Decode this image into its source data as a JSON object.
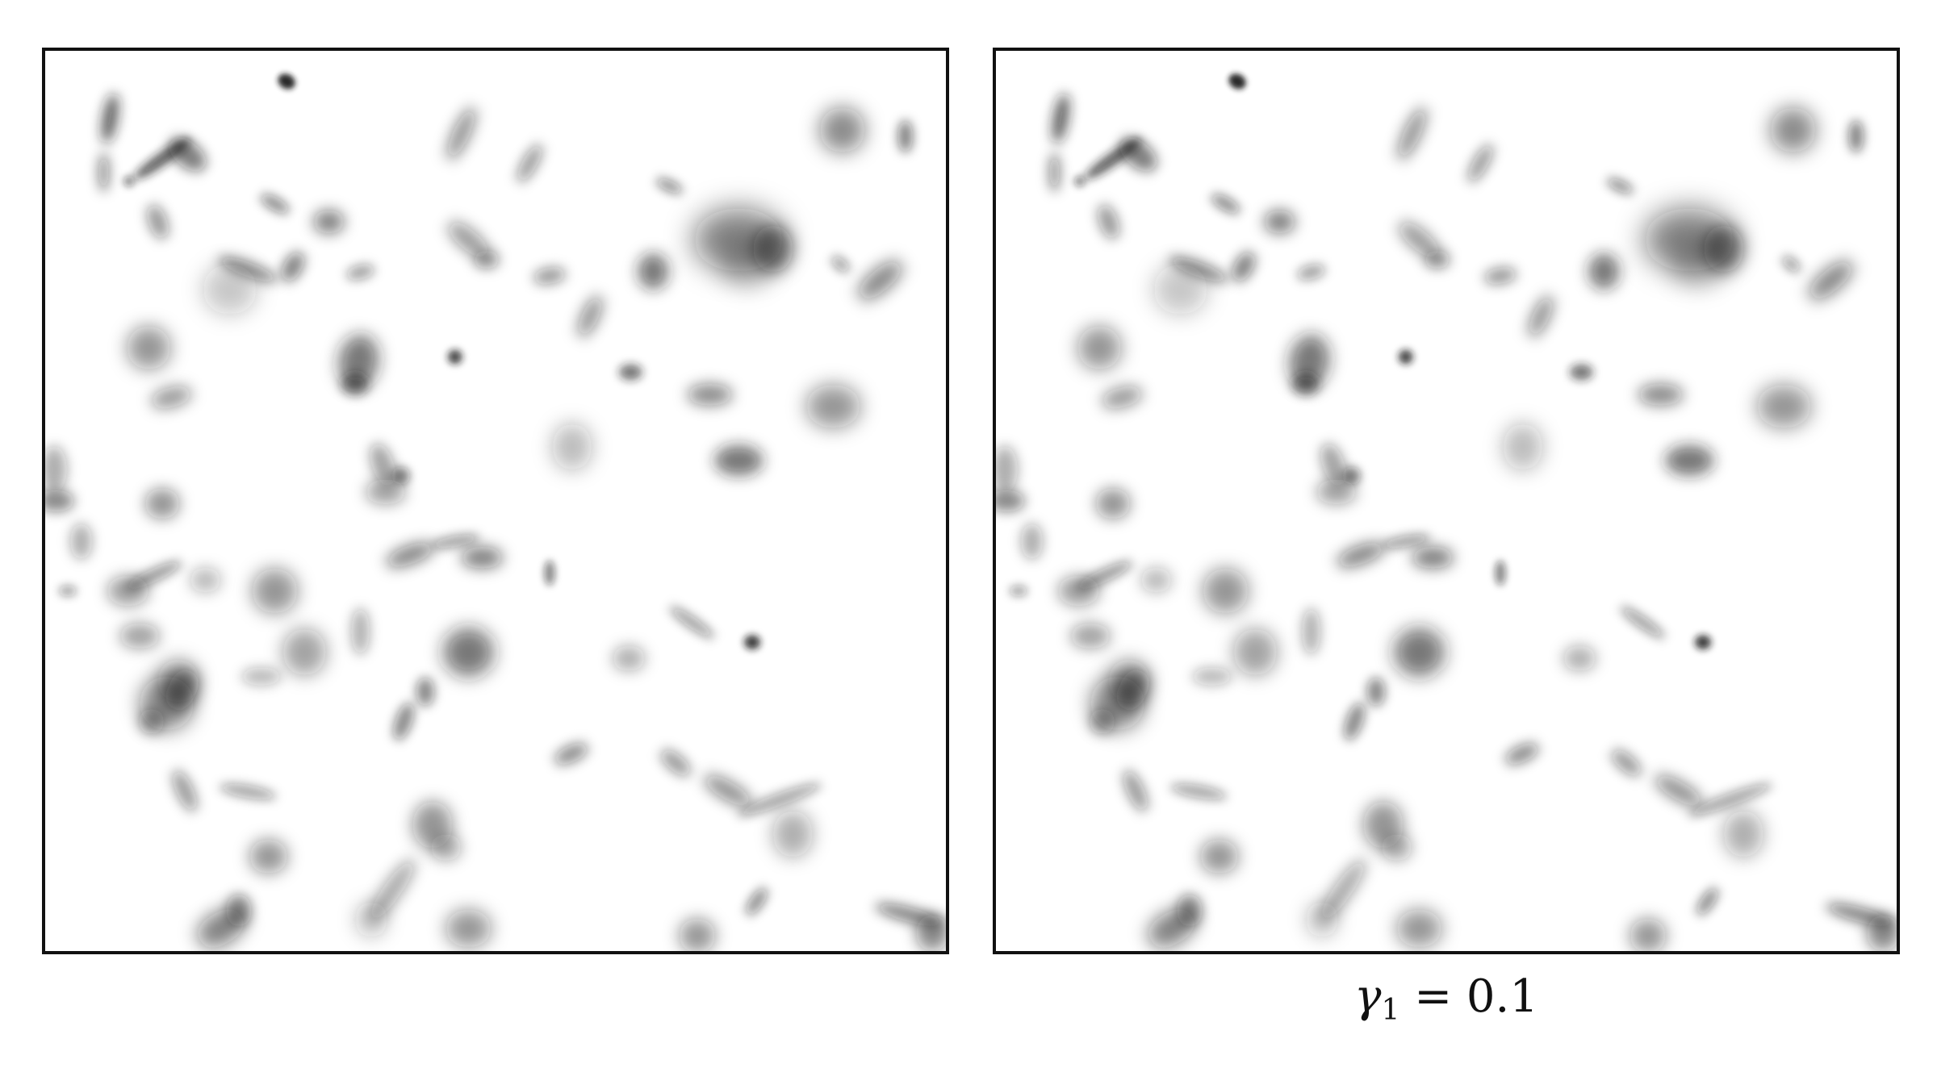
{
  "figure": {
    "panels": [
      {
        "name": "galaxy-field-unsheared",
        "caption": null
      },
      {
        "name": "galaxy-field-sheared",
        "caption": {
          "symbol": "γ",
          "subscript": "1",
          "relation": " = 0.1"
        }
      }
    ]
  },
  "colors": {
    "background": "#ffffff",
    "frame": "#111111",
    "galaxy": "#1a1a1a"
  }
}
